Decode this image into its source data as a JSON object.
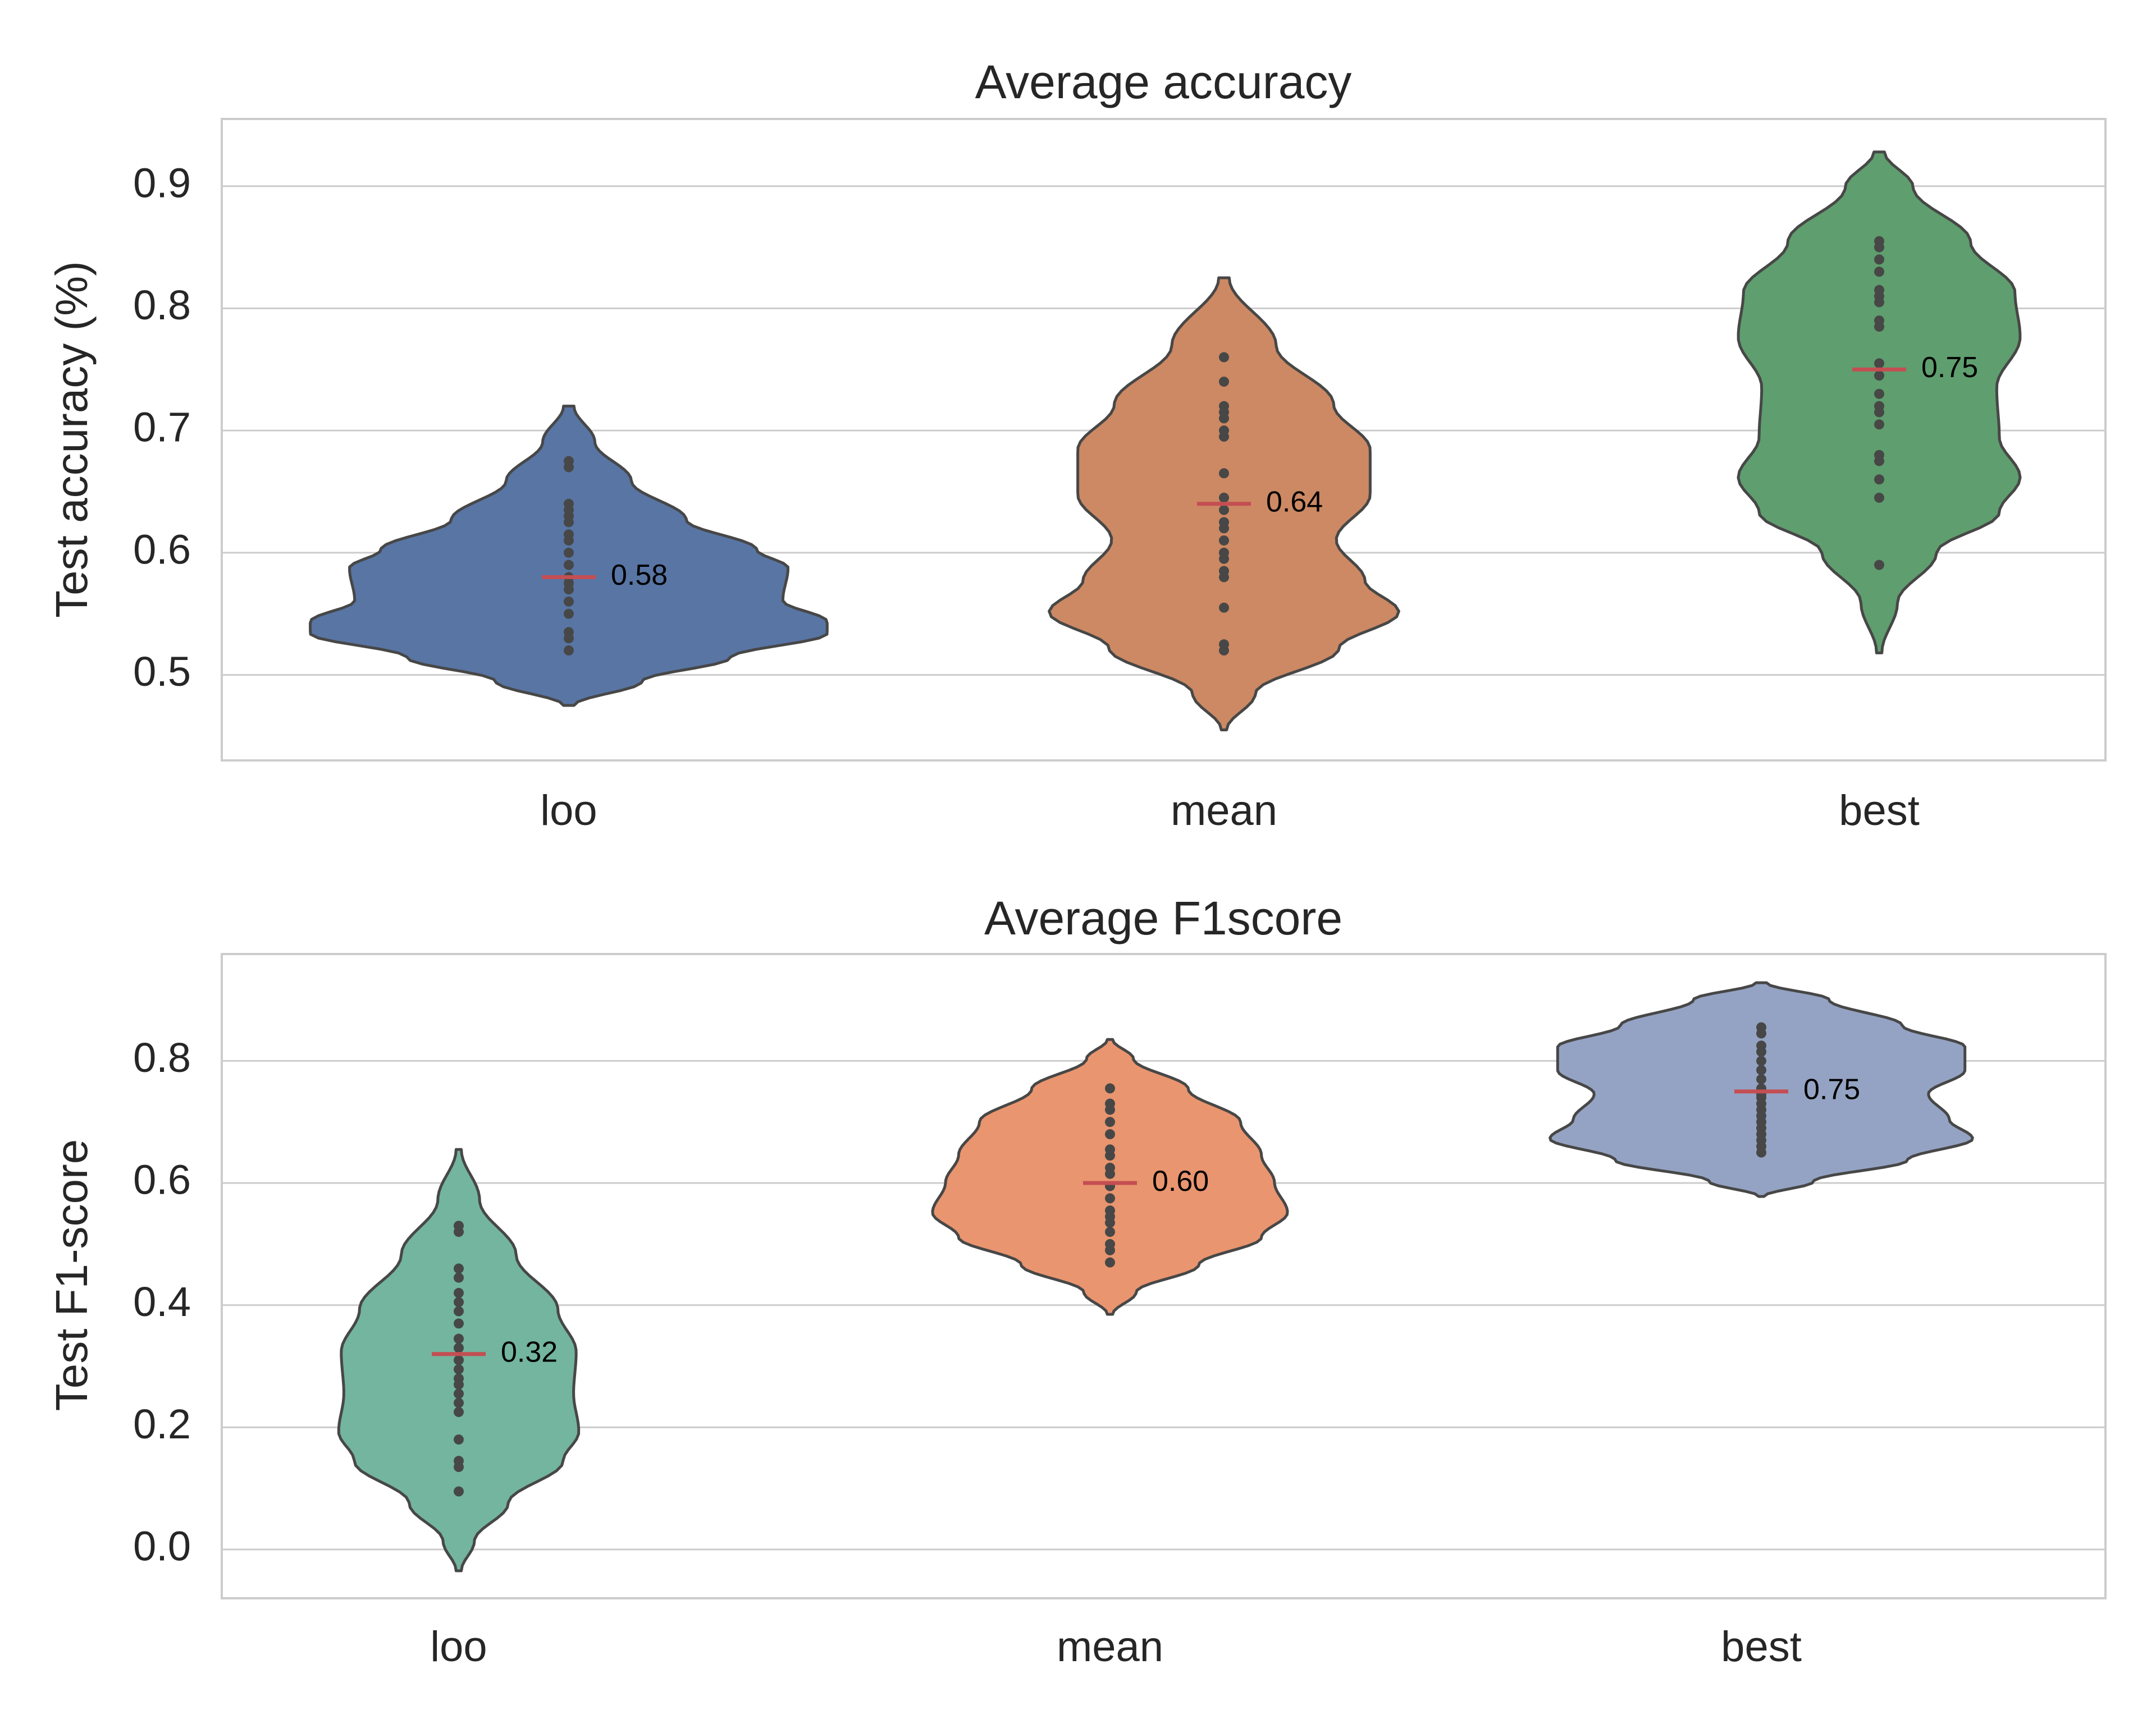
{
  "chart_data": [
    {
      "type": "violin",
      "title": "Average accuracy",
      "ylabel": "Test accuracy (%)",
      "xlabel": "",
      "ylim": [
        0.43,
        0.955
      ],
      "yticks": [
        0.5,
        0.6,
        0.7,
        0.8,
        0.9
      ],
      "ytick_labels": [
        "0.5",
        "0.6",
        "0.7",
        "0.8",
        "0.9"
      ],
      "grid": true,
      "categories": [
        "loo",
        "mean",
        "best"
      ],
      "colors": [
        "#5875a4",
        "#cc8963",
        "#5f9e6e"
      ],
      "median_color": "#c44e52",
      "series": [
        {
          "name": "loo",
          "median": 0.58,
          "median_label": "0.58",
          "range": [
            0.475,
            0.72
          ],
          "points": [
            0.52,
            0.53,
            0.535,
            0.55,
            0.56,
            0.57,
            0.575,
            0.58,
            0.59,
            0.6,
            0.61,
            0.615,
            0.625,
            0.63,
            0.635,
            0.64,
            0.67,
            0.675
          ]
        },
        {
          "name": "mean",
          "median": 0.64,
          "median_label": "0.64",
          "range": [
            0.455,
            0.825
          ],
          "points": [
            0.52,
            0.525,
            0.555,
            0.58,
            0.585,
            0.595,
            0.6,
            0.61,
            0.62,
            0.625,
            0.635,
            0.645,
            0.665,
            0.695,
            0.7,
            0.71,
            0.715,
            0.72,
            0.74,
            0.76
          ]
        },
        {
          "name": "best",
          "median": 0.75,
          "median_label": "0.75",
          "range": [
            0.518,
            0.928
          ],
          "points": [
            0.59,
            0.645,
            0.66,
            0.675,
            0.68,
            0.705,
            0.715,
            0.72,
            0.73,
            0.745,
            0.755,
            0.785,
            0.79,
            0.805,
            0.81,
            0.815,
            0.83,
            0.84,
            0.85,
            0.855
          ]
        }
      ]
    },
    {
      "type": "violin",
      "title": "Average F1score",
      "ylabel": "Test F1-score",
      "xlabel": "",
      "ylim": [
        -0.08,
        0.975
      ],
      "yticks": [
        0.0,
        0.2,
        0.4,
        0.6,
        0.8
      ],
      "ytick_labels": [
        "0.0",
        "0.2",
        "0.4",
        "0.6",
        "0.8"
      ],
      "grid": true,
      "categories": [
        "loo",
        "mean",
        "best"
      ],
      "colors": [
        "#73b59f",
        "#e9956f",
        "#94a3c3"
      ],
      "median_color": "#c44e52",
      "series": [
        {
          "name": "loo",
          "median": 0.32,
          "median_label": "0.32",
          "range": [
            -0.035,
            0.655
          ],
          "points": [
            0.095,
            0.135,
            0.145,
            0.18,
            0.225,
            0.24,
            0.255,
            0.27,
            0.28,
            0.295,
            0.31,
            0.33,
            0.345,
            0.37,
            0.39,
            0.405,
            0.42,
            0.445,
            0.46,
            0.52,
            0.53
          ]
        },
        {
          "name": "mean",
          "median": 0.6,
          "median_label": "0.60",
          "range": [
            0.385,
            0.835
          ],
          "points": [
            0.47,
            0.49,
            0.5,
            0.52,
            0.535,
            0.545,
            0.555,
            0.575,
            0.595,
            0.615,
            0.625,
            0.645,
            0.655,
            0.68,
            0.7,
            0.72,
            0.73,
            0.755
          ]
        },
        {
          "name": "best",
          "median": 0.75,
          "median_label": "0.75",
          "range": [
            0.578,
            0.928
          ],
          "points": [
            0.65,
            0.66,
            0.67,
            0.68,
            0.69,
            0.7,
            0.71,
            0.72,
            0.73,
            0.74,
            0.745,
            0.755,
            0.77,
            0.785,
            0.8,
            0.815,
            0.825,
            0.845,
            0.855
          ]
        }
      ]
    }
  ]
}
